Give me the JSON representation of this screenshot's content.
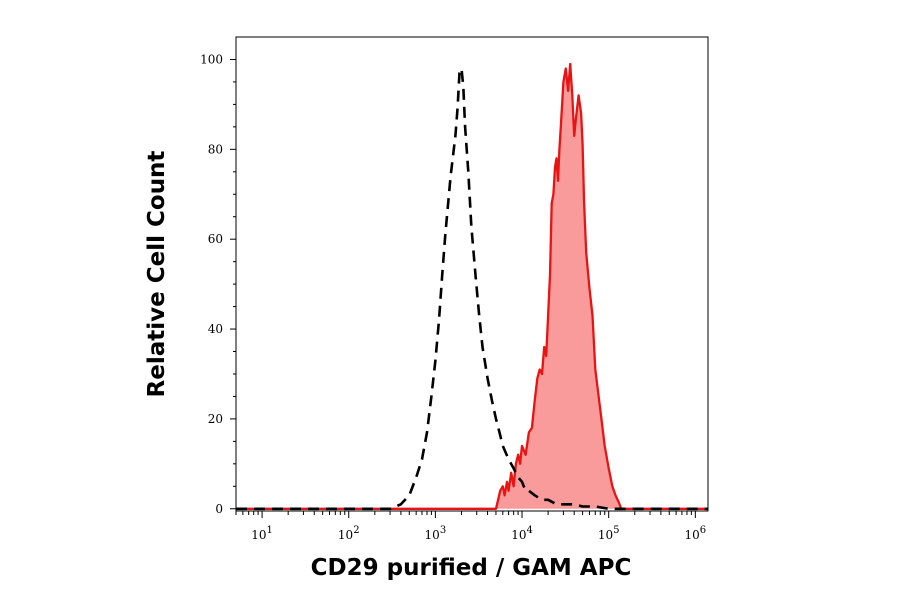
{
  "chart_data": {
    "type": "area",
    "title": "",
    "xlabel": "CD29 purified / GAM APC",
    "ylabel": "Relative Cell Count",
    "x_scale": "log",
    "xlim": [
      5,
      1400000
    ],
    "ylim": [
      -0.5,
      105
    ],
    "grid": false,
    "legend": "none",
    "x_ticks": [
      {
        "base": "10",
        "exp": "1",
        "value": 10
      },
      {
        "base": "10",
        "exp": "2",
        "value": 100
      },
      {
        "base": "10",
        "exp": "3",
        "value": 1000
      },
      {
        "base": "10",
        "exp": "4",
        "value": 10000
      },
      {
        "base": "10",
        "exp": "5",
        "value": 100000
      },
      {
        "base": "10",
        "exp": "6",
        "value": 1000000
      }
    ],
    "y_ticks": [
      0,
      20,
      40,
      60,
      80,
      100
    ],
    "colors": {
      "stained_line": "#e81414",
      "stained_fill": "#f99b9b",
      "control_line": "#000000"
    },
    "series": [
      {
        "style": "dashed-black-line",
        "x": [
          5,
          300,
          400,
          500,
          600,
          700,
          800,
          900,
          1000,
          1100,
          1200,
          1300,
          1500,
          1700,
          1800,
          1900,
          2000,
          2100,
          2200,
          2400,
          2600,
          2900,
          3200,
          3500,
          4000,
          4500,
          5000,
          5500,
          6000,
          7000,
          8000,
          9000,
          10000,
          11000,
          12000,
          14000,
          17000,
          20000,
          25000,
          30000,
          40000,
          50000,
          60000,
          70000,
          100000,
          1400000
        ],
        "y": [
          0,
          0,
          1,
          3,
          7,
          11,
          17,
          25,
          33,
          42,
          52,
          61,
          74,
          83,
          89,
          97,
          98,
          94,
          85,
          75,
          63,
          52,
          43,
          36,
          29,
          24,
          20,
          17,
          14,
          11,
          9,
          7,
          6,
          4,
          4,
          3,
          2,
          2,
          1,
          1,
          1,
          0.5,
          0.5,
          0.5,
          0,
          0
        ]
      },
      {
        "style": "filled-red-area",
        "x": [
          5,
          5000,
          5600,
          6000,
          6300,
          6700,
          7000,
          7500,
          8000,
          8500,
          9000,
          9500,
          10000,
          11000,
          12000,
          13000,
          14000,
          15000,
          16000,
          17000,
          18000,
          19000,
          20000,
          21000,
          22000,
          23000,
          24000,
          25000,
          26000,
          27000,
          28000,
          30000,
          32000,
          34000,
          36000,
          38000,
          40000,
          42000,
          45000,
          48000,
          50000,
          52000,
          55000,
          60000,
          65000,
          70000,
          80000,
          90000,
          100000,
          110000,
          120000,
          130000,
          140000,
          1400000
        ],
        "y": [
          0,
          0,
          4,
          5,
          3,
          6,
          4,
          8,
          5,
          10,
          12,
          10,
          14,
          12,
          17,
          18,
          24,
          29,
          31,
          30,
          36,
          34,
          43,
          52,
          68,
          70,
          76,
          78,
          73,
          80,
          85,
          95,
          98,
          93,
          99,
          92,
          83,
          87,
          92,
          88,
          81,
          68,
          57,
          49,
          43,
          31,
          22,
          14,
          9,
          5,
          3,
          1.5,
          0,
          0
        ]
      }
    ]
  }
}
